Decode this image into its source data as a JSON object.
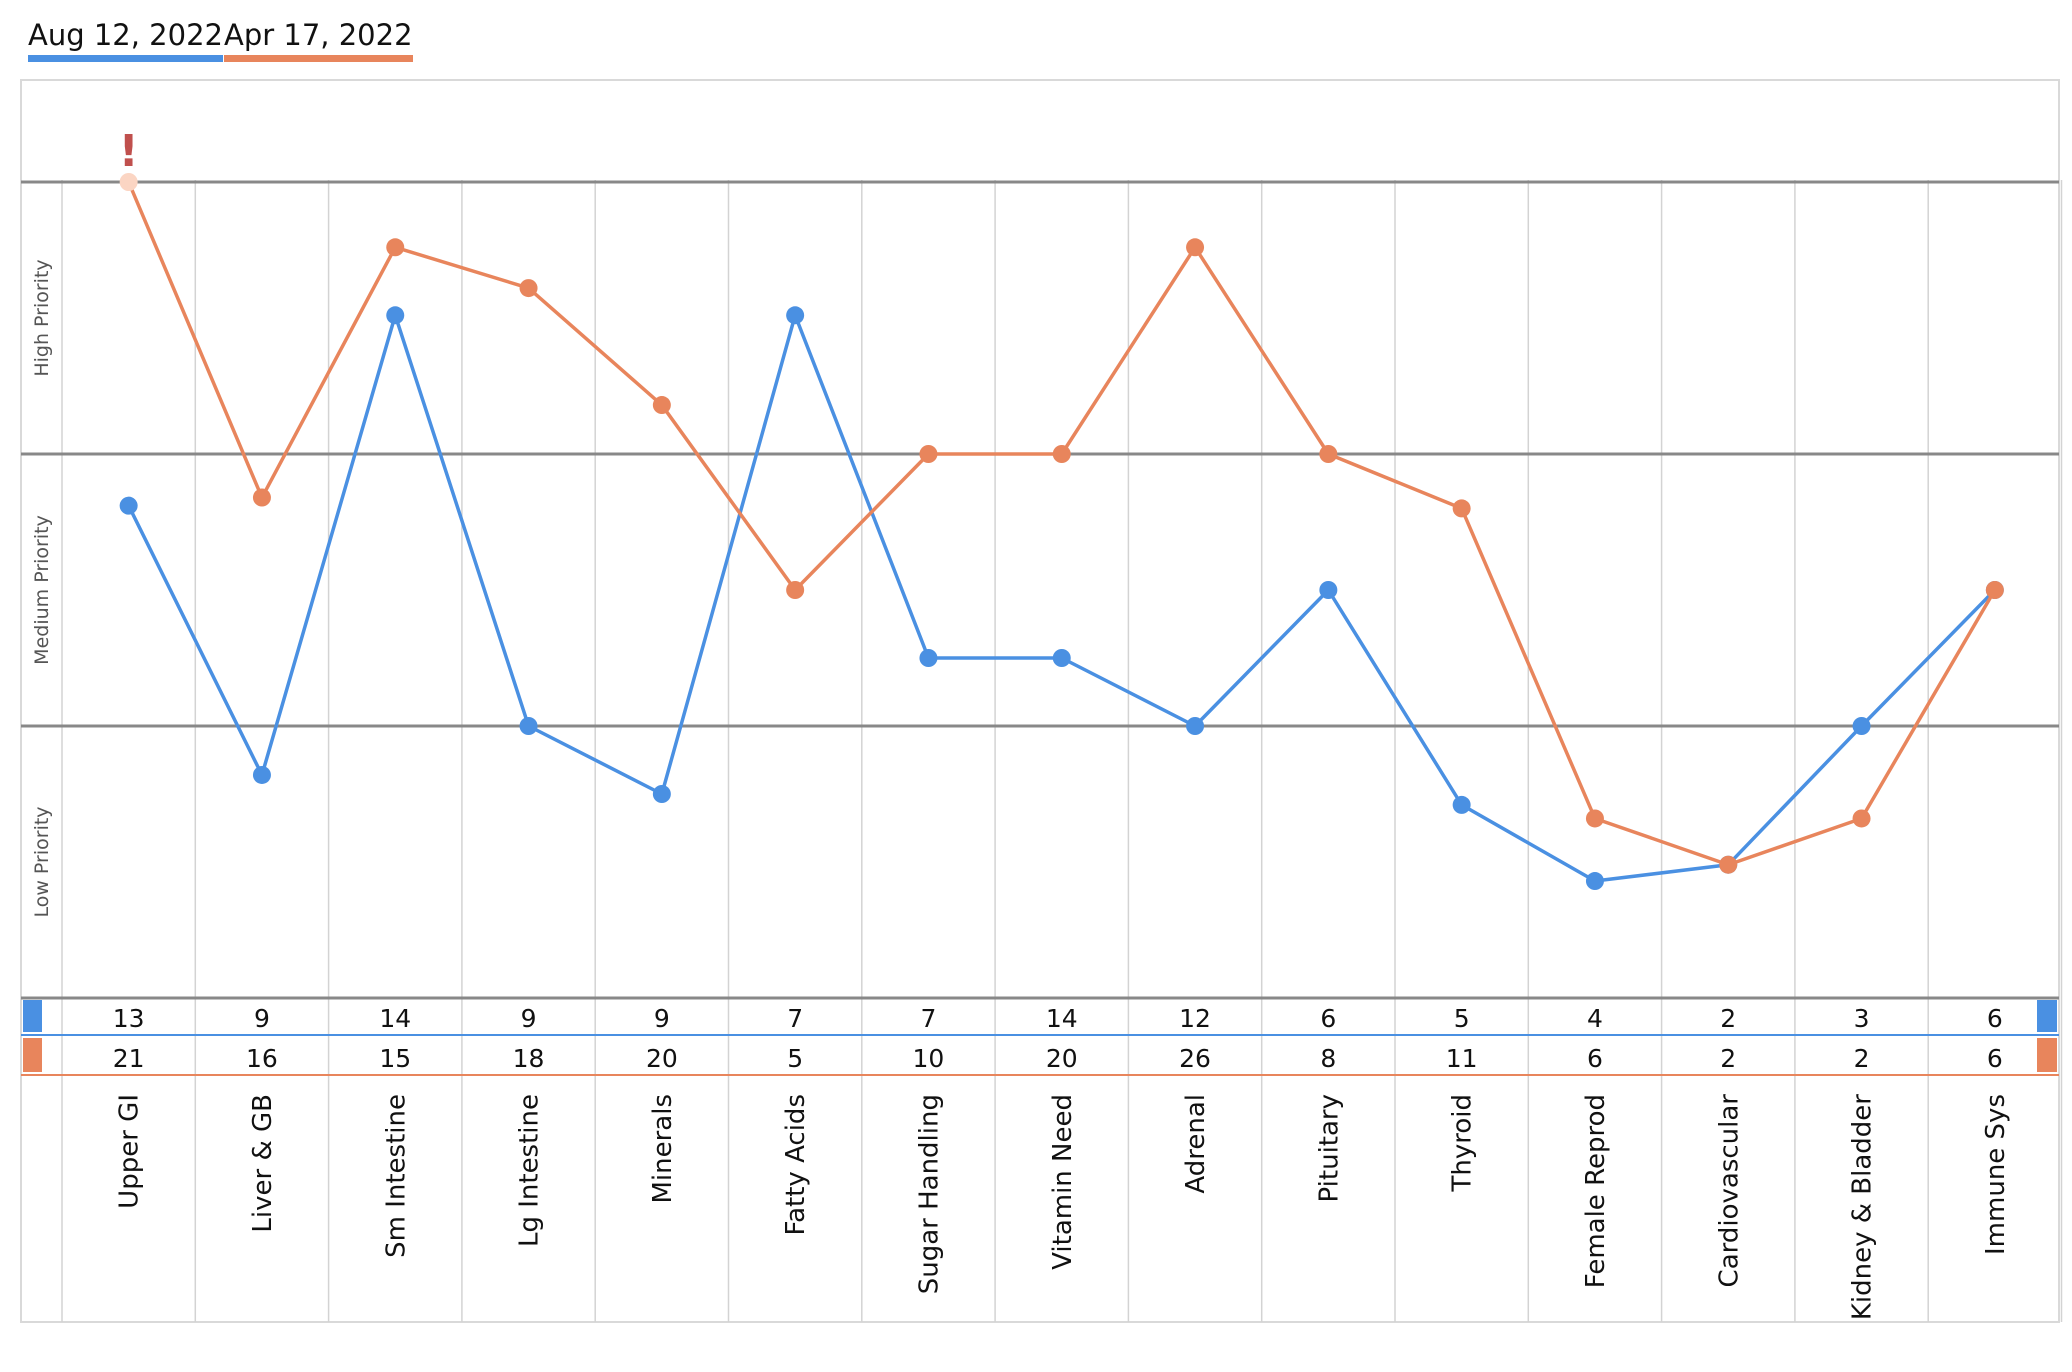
{
  "legend": {
    "series_a_label": "Aug 12, 2022",
    "series_b_label": "Apr 17, 2022"
  },
  "colors": {
    "series_a": "#4a90e2",
    "series_b": "#e8855c",
    "warning": "#c0504d",
    "band_line": "#888888",
    "grid": "#d3d3d3",
    "frame": "#d9d9d9"
  },
  "alert_marker": "!",
  "chart_data": {
    "type": "line",
    "categories": [
      "Upper GI",
      "Liver & GB",
      "Sm Intestine",
      "Lg Intestine",
      "Minerals",
      "Fatty Acids",
      "Sugar Handling",
      "Vitamin Need",
      "Adrenal",
      "Pituitary",
      "Thyroid",
      "Female Reprod",
      "Cardiovascular",
      "Kidney & Bladder",
      "Immune Sys"
    ],
    "series": [
      {
        "name": "Aug 12, 2022",
        "values": [
          13,
          9,
          14,
          9,
          9,
          7,
          7,
          14,
          12,
          6,
          5,
          4,
          2,
          3,
          6
        ]
      },
      {
        "name": "Apr 17, 2022",
        "values": [
          21,
          16,
          15,
          18,
          20,
          5,
          10,
          20,
          26,
          8,
          11,
          6,
          2,
          2,
          6
        ]
      }
    ],
    "plotted_levels": {
      "Aug 12, 2022": [
        1.81,
        0.82,
        2.51,
        1.0,
        0.75,
        2.51,
        1.25,
        1.25,
        1.0,
        1.5,
        0.71,
        0.43,
        0.49,
        1.0,
        1.5
      ],
      "Apr 17, 2022": [
        3.0,
        1.84,
        2.76,
        2.61,
        2.18,
        1.5,
        2.0,
        2.0,
        2.76,
        2.0,
        1.8,
        0.66,
        0.49,
        0.66,
        1.5
      ]
    },
    "level_range": [
      0,
      3
    ],
    "bands": [
      "Low Priority",
      "Medium Priority",
      "High Priority"
    ],
    "flagged": [
      {
        "series": "Apr 17, 2022",
        "category": "Upper GI"
      }
    ],
    "grid": true,
    "legend_position": "top-left"
  }
}
